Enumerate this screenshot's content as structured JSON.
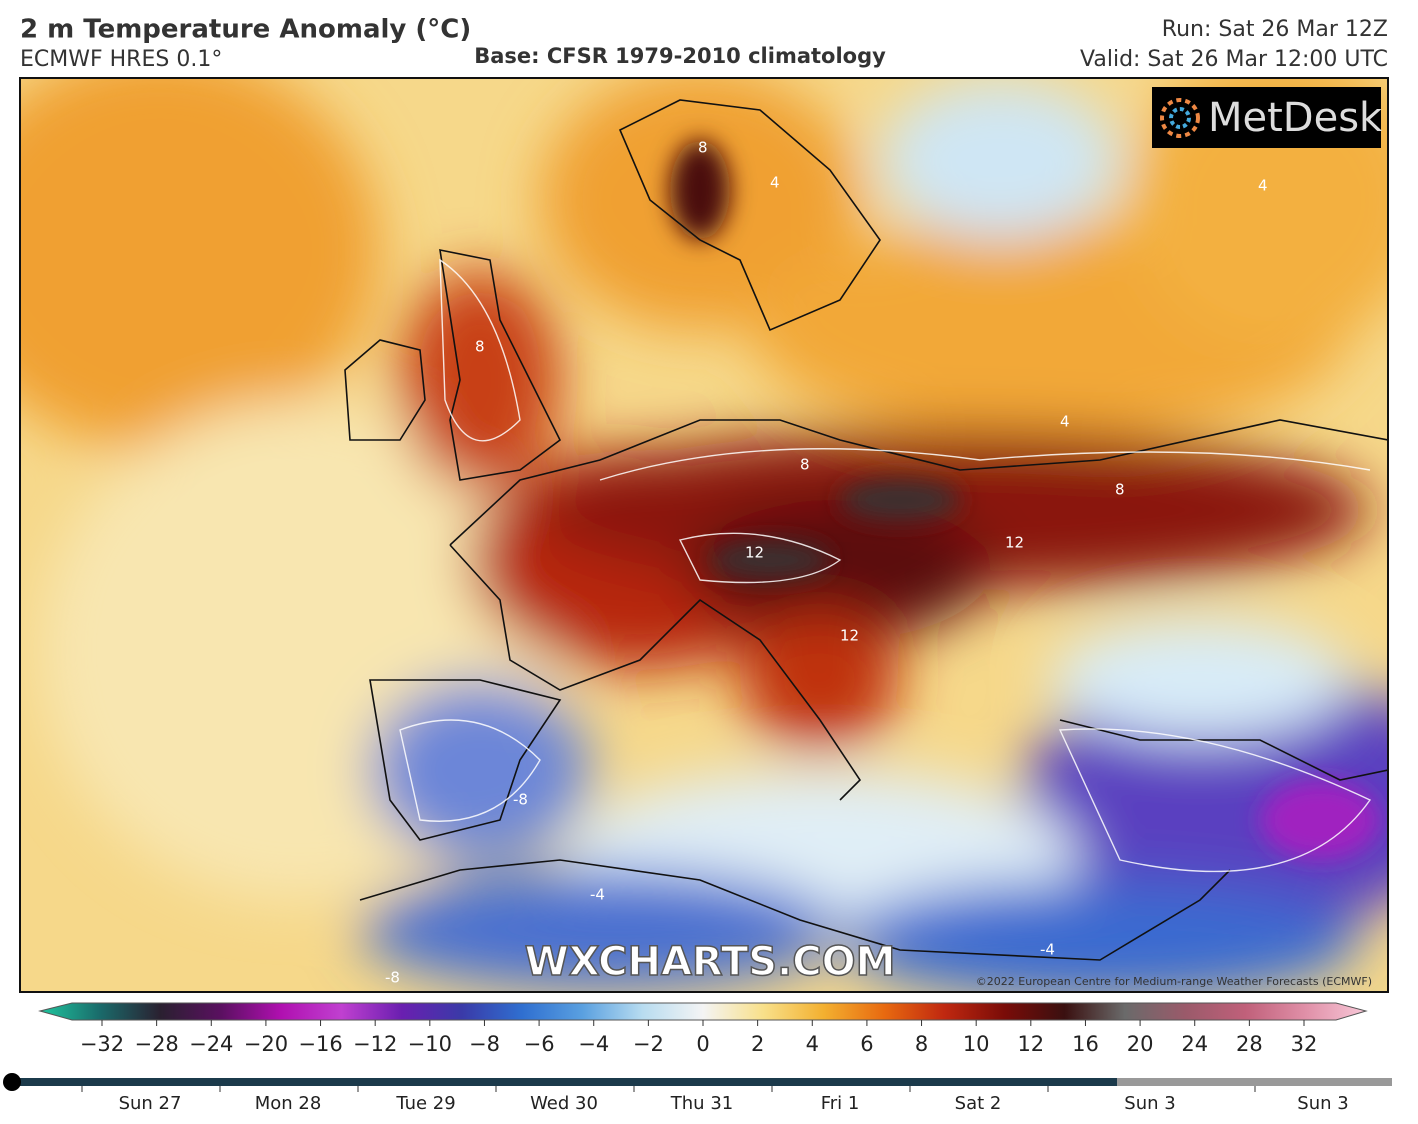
{
  "header": {
    "title": "2 m Temperature Anomaly (°C)",
    "model": "ECMWF HRES 0.1°",
    "base": "Base: CFSR 1979-2010 climatology",
    "run": "Run: Sat 26 Mar 12Z",
    "valid": "Valid: Sat 26 Mar 12:00 UTC"
  },
  "logo": "MetDesk",
  "watermark": "WXCHARTS.COM",
  "copyright": "©2022 European Centre for Medium-range Weather Forecasts (ECMWF)",
  "contour_labels": [
    "8",
    "8",
    "12",
    "12",
    "12",
    "8",
    "4",
    "4",
    "-4",
    "-8",
    "-8",
    "8",
    "4",
    "-4"
  ],
  "colorbar": {
    "ticks": [
      "−32",
      "−28",
      "−24",
      "−20",
      "−16",
      "−12",
      "−10",
      "−8",
      "−6",
      "−4",
      "−2",
      "0",
      "2",
      "4",
      "6",
      "8",
      "10",
      "12",
      "16",
      "20",
      "24",
      "28",
      "32"
    ],
    "colors": [
      "#1fc79f",
      "#1a6a6a",
      "#2a2030",
      "#5a1060",
      "#b010b0",
      "#c040d0",
      "#6a1fb0",
      "#3a3aa8",
      "#2f6fd0",
      "#5aa0e0",
      "#b8dcf0",
      "#f4f4f4",
      "#f8e08a",
      "#f3b030",
      "#e86a10",
      "#c02810",
      "#7a0c08",
      "#3a1010",
      "#6a6a6a",
      "#9a5a6a",
      "#c0607a",
      "#e090a8",
      "#f8c8d8"
    ]
  },
  "timeline": {
    "labels": [
      "Sun 27",
      "Mon 28",
      "Tue 29",
      "Wed 30",
      "Thu 31",
      "Fri 1",
      "Sat 2",
      "Sun 3",
      "Sun 3"
    ]
  }
}
